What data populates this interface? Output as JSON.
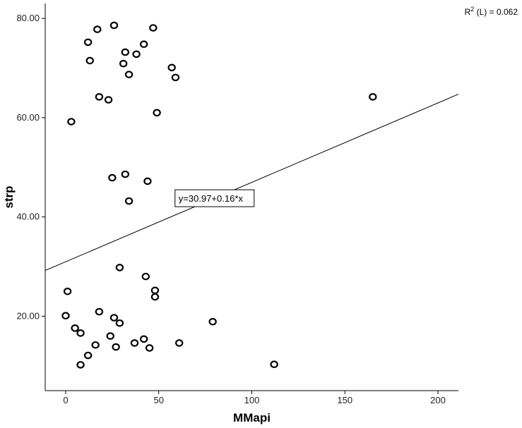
{
  "chart_data": {
    "type": "scatter",
    "xlabel": "MMapi",
    "ylabel": "strp",
    "xlim": [
      -11,
      211
    ],
    "ylim": [
      5,
      83
    ],
    "x_ticks": [
      0,
      50,
      100,
      150,
      200
    ],
    "x_tick_labels": [
      "0",
      "50",
      "100",
      "150",
      "200"
    ],
    "y_ticks": [
      20,
      40,
      60,
      80
    ],
    "y_tick_labels": [
      "20.00",
      "40.00",
      "60.00",
      "80.00"
    ],
    "grid": false,
    "r2": {
      "prefix": "R",
      "superscript": "2",
      "suffix": " (L) = 0.062"
    },
    "fit_line": {
      "intercept": 30.97,
      "slope": 0.16,
      "label": "y=30.97+0.16*x",
      "label_anchor_x": 80
    },
    "points": [
      {
        "x": 3,
        "y": 59.2
      },
      {
        "x": 12,
        "y": 75.2
      },
      {
        "x": 13,
        "y": 71.5
      },
      {
        "x": 17,
        "y": 77.8
      },
      {
        "x": 18,
        "y": 64.2
      },
      {
        "x": 23,
        "y": 63.6
      },
      {
        "x": 26,
        "y": 78.6
      },
      {
        "x": 31,
        "y": 70.9
      },
      {
        "x": 32,
        "y": 73.2
      },
      {
        "x": 34,
        "y": 68.7
      },
      {
        "x": 38,
        "y": 72.8
      },
      {
        "x": 42,
        "y": 74.8
      },
      {
        "x": 47,
        "y": 78.1
      },
      {
        "x": 49,
        "y": 61.0
      },
      {
        "x": 57,
        "y": 70.1
      },
      {
        "x": 59,
        "y": 68.1
      },
      {
        "x": 165,
        "y": 64.2
      },
      {
        "x": 25,
        "y": 47.9
      },
      {
        "x": 32,
        "y": 48.6
      },
      {
        "x": 34,
        "y": 43.2
      },
      {
        "x": 44,
        "y": 47.2
      },
      {
        "x": 1,
        "y": 25.0
      },
      {
        "x": 0,
        "y": 20.1
      },
      {
        "x": 5,
        "y": 17.6
      },
      {
        "x": 8,
        "y": 16.6
      },
      {
        "x": 8,
        "y": 10.2
      },
      {
        "x": 12,
        "y": 12.1
      },
      {
        "x": 16,
        "y": 14.2
      },
      {
        "x": 18,
        "y": 20.9
      },
      {
        "x": 24,
        "y": 16.0
      },
      {
        "x": 26,
        "y": 19.7
      },
      {
        "x": 27,
        "y": 13.8
      },
      {
        "x": 29,
        "y": 18.6
      },
      {
        "x": 29,
        "y": 29.8
      },
      {
        "x": 37,
        "y": 14.6
      },
      {
        "x": 42,
        "y": 15.4
      },
      {
        "x": 43,
        "y": 28.0
      },
      {
        "x": 45,
        "y": 13.6
      },
      {
        "x": 48,
        "y": 25.2
      },
      {
        "x": 48,
        "y": 23.9
      },
      {
        "x": 61,
        "y": 14.6
      },
      {
        "x": 79,
        "y": 18.9
      },
      {
        "x": 112,
        "y": 10.3
      }
    ]
  }
}
